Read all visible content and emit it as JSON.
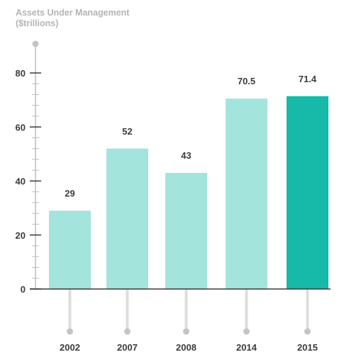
{
  "chart_data": {
    "type": "bar",
    "title_lines": [
      "Assets Under Management",
      "($trillions)"
    ],
    "categories": [
      "2002",
      "2007",
      "2008",
      "2014",
      "2015"
    ],
    "values": [
      29,
      52,
      43,
      70.5,
      71.4
    ],
    "value_labels": [
      "29",
      "52",
      "43",
      "70.5",
      "71.4"
    ],
    "y_ticks": [
      "80",
      "60",
      "40",
      "20",
      "0"
    ],
    "ylim": [
      0,
      80
    ],
    "y_minor_step": 4,
    "grid": false,
    "highlight_index": 4,
    "colors": {
      "bar": "#a3e4dc",
      "highlight": "#17b9a8",
      "axis": "#3a3a3a",
      "minor_tick": "#bdbdbd",
      "guide": "#dddddd",
      "dot": "#c4c4c4",
      "label": "#3b3b3b",
      "title": "#b4b4b4"
    }
  }
}
